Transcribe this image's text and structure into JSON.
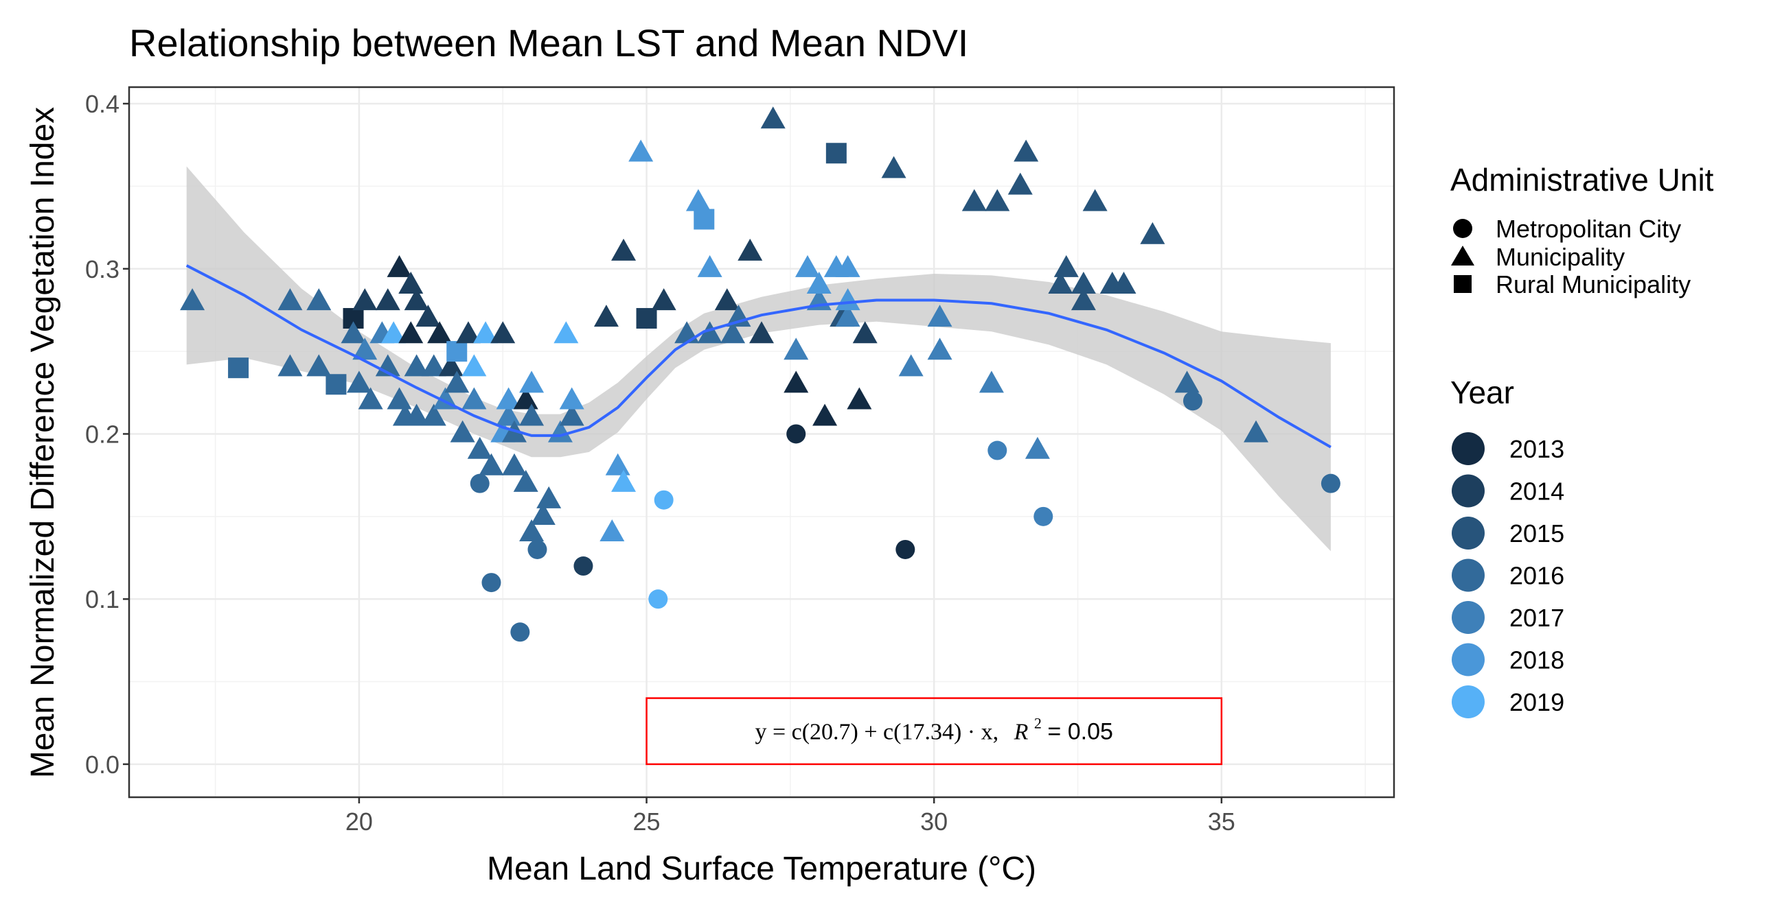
{
  "chart_data": {
    "type": "scatter",
    "title": "Relationship between Mean LST and Mean NDVI",
    "xlabel": "Mean Land Surface Temperature (°C)",
    "ylabel": "Mean Normalized Difference Vegetation Index",
    "xlim": [
      16,
      38
    ],
    "ylim": [
      -0.02,
      0.41
    ],
    "x_ticks": [
      20,
      25,
      30,
      35
    ],
    "y_ticks": [
      0.0,
      0.1,
      0.2,
      0.3,
      0.4
    ],
    "x_tick_labels": [
      "20",
      "25",
      "30",
      "35"
    ],
    "y_tick_labels": [
      "0.0",
      "0.1",
      "0.2",
      "0.3",
      "0.4"
    ],
    "grid": true,
    "annotation": {
      "equation_prefix": "y = c(20.7) + c(17.34) · x,",
      "r2_label": "R",
      "r2_exp": "2",
      "r2_value": " = 0.05",
      "box_x_range": [
        25,
        35
      ],
      "box_y_range": [
        0.0,
        0.04
      ],
      "box_color": "#ff0000"
    },
    "legend": {
      "shape_title": "Administrative Unit",
      "shapes": [
        {
          "label": "Metropolitan City",
          "shape": "circle"
        },
        {
          "label": "Municipality",
          "shape": "triangle"
        },
        {
          "label": "Rural Municipality",
          "shape": "square"
        }
      ],
      "color_title": "Year",
      "years": [
        {
          "label": "2013",
          "color": "#132b43"
        },
        {
          "label": "2014",
          "color": "#1d3f5e"
        },
        {
          "label": "2015",
          "color": "#27547b"
        },
        {
          "label": "2016",
          "color": "#326a9a"
        },
        {
          "label": "2017",
          "color": "#3e80b9"
        },
        {
          "label": "2018",
          "color": "#4a97d9"
        },
        {
          "label": "2019",
          "color": "#56b1f7"
        }
      ]
    },
    "smooth": {
      "color": "#3366ff",
      "ribbon_color": "#cccccc",
      "x": [
        17.0,
        18,
        19,
        20,
        21,
        22,
        22.5,
        23,
        23.5,
        24,
        24.5,
        25,
        25.5,
        26,
        27,
        28,
        29,
        30,
        31,
        32,
        33,
        34,
        35,
        36,
        36.9
      ],
      "y": [
        0.302,
        0.284,
        0.263,
        0.246,
        0.228,
        0.211,
        0.204,
        0.199,
        0.199,
        0.204,
        0.216,
        0.234,
        0.251,
        0.262,
        0.272,
        0.278,
        0.281,
        0.281,
        0.279,
        0.273,
        0.263,
        0.249,
        0.232,
        0.21,
        0.192
      ],
      "upper": [
        0.362,
        0.322,
        0.288,
        0.262,
        0.24,
        0.222,
        0.215,
        0.212,
        0.212,
        0.219,
        0.231,
        0.247,
        0.262,
        0.273,
        0.283,
        0.29,
        0.294,
        0.297,
        0.296,
        0.292,
        0.284,
        0.274,
        0.262,
        0.258,
        0.255
      ],
      "lower": [
        0.242,
        0.246,
        0.238,
        0.23,
        0.216,
        0.2,
        0.193,
        0.186,
        0.186,
        0.189,
        0.201,
        0.221,
        0.24,
        0.251,
        0.261,
        0.266,
        0.268,
        0.265,
        0.262,
        0.254,
        0.242,
        0.224,
        0.202,
        0.162,
        0.129
      ]
    },
    "points": [
      {
        "x": 17.1,
        "y": 0.28,
        "shape": "triangle",
        "year": 2016
      },
      {
        "x": 17.9,
        "y": 0.24,
        "shape": "square",
        "year": 2016
      },
      {
        "x": 18.8,
        "y": 0.28,
        "shape": "triangle",
        "year": 2016
      },
      {
        "x": 18.8,
        "y": 0.24,
        "shape": "triangle",
        "year": 2016
      },
      {
        "x": 19.3,
        "y": 0.28,
        "shape": "triangle",
        "year": 2016
      },
      {
        "x": 19.3,
        "y": 0.24,
        "shape": "triangle",
        "year": 2016
      },
      {
        "x": 19.6,
        "y": 0.23,
        "shape": "square",
        "year": 2016
      },
      {
        "x": 19.9,
        "y": 0.27,
        "shape": "square",
        "year": 2013
      },
      {
        "x": 19.9,
        "y": 0.26,
        "shape": "triangle",
        "year": 2016
      },
      {
        "x": 20.0,
        "y": 0.23,
        "shape": "triangle",
        "year": 2016
      },
      {
        "x": 20.1,
        "y": 0.25,
        "shape": "triangle",
        "year": 2017
      },
      {
        "x": 20.1,
        "y": 0.28,
        "shape": "triangle",
        "year": 2014
      },
      {
        "x": 20.2,
        "y": 0.22,
        "shape": "triangle",
        "year": 2016
      },
      {
        "x": 20.4,
        "y": 0.26,
        "shape": "triangle",
        "year": 2017
      },
      {
        "x": 20.5,
        "y": 0.28,
        "shape": "triangle",
        "year": 2014
      },
      {
        "x": 20.5,
        "y": 0.24,
        "shape": "triangle",
        "year": 2016
      },
      {
        "x": 20.6,
        "y": 0.26,
        "shape": "triangle",
        "year": 2019
      },
      {
        "x": 20.7,
        "y": 0.3,
        "shape": "triangle",
        "year": 2013
      },
      {
        "x": 20.7,
        "y": 0.22,
        "shape": "triangle",
        "year": 2016
      },
      {
        "x": 20.8,
        "y": 0.21,
        "shape": "triangle",
        "year": 2016
      },
      {
        "x": 20.9,
        "y": 0.29,
        "shape": "triangle",
        "year": 2014
      },
      {
        "x": 20.9,
        "y": 0.26,
        "shape": "triangle",
        "year": 2013
      },
      {
        "x": 21.0,
        "y": 0.28,
        "shape": "triangle",
        "year": 2014
      },
      {
        "x": 21.0,
        "y": 0.24,
        "shape": "triangle",
        "year": 2016
      },
      {
        "x": 21.0,
        "y": 0.21,
        "shape": "triangle",
        "year": 2016
      },
      {
        "x": 21.2,
        "y": 0.27,
        "shape": "triangle",
        "year": 2014
      },
      {
        "x": 21.3,
        "y": 0.24,
        "shape": "triangle",
        "year": 2016
      },
      {
        "x": 21.3,
        "y": 0.21,
        "shape": "triangle",
        "year": 2016
      },
      {
        "x": 21.4,
        "y": 0.26,
        "shape": "triangle",
        "year": 2013
      },
      {
        "x": 21.5,
        "y": 0.22,
        "shape": "triangle",
        "year": 2017
      },
      {
        "x": 21.6,
        "y": 0.24,
        "shape": "triangle",
        "year": 2014
      },
      {
        "x": 21.7,
        "y": 0.23,
        "shape": "triangle",
        "year": 2016
      },
      {
        "x": 21.7,
        "y": 0.25,
        "shape": "square",
        "year": 2018
      },
      {
        "x": 21.8,
        "y": 0.2,
        "shape": "triangle",
        "year": 2016
      },
      {
        "x": 21.9,
        "y": 0.26,
        "shape": "triangle",
        "year": 2014
      },
      {
        "x": 22.0,
        "y": 0.24,
        "shape": "triangle",
        "year": 2019
      },
      {
        "x": 22.0,
        "y": 0.22,
        "shape": "triangle",
        "year": 2017
      },
      {
        "x": 22.1,
        "y": 0.19,
        "shape": "triangle",
        "year": 2016
      },
      {
        "x": 22.1,
        "y": 0.17,
        "shape": "circle",
        "year": 2016
      },
      {
        "x": 22.2,
        "y": 0.26,
        "shape": "triangle",
        "year": 2019
      },
      {
        "x": 22.3,
        "y": 0.18,
        "shape": "triangle",
        "year": 2016
      },
      {
        "x": 22.3,
        "y": 0.11,
        "shape": "circle",
        "year": 2016
      },
      {
        "x": 22.5,
        "y": 0.26,
        "shape": "triangle",
        "year": 2014
      },
      {
        "x": 22.5,
        "y": 0.2,
        "shape": "triangle",
        "year": 2018
      },
      {
        "x": 22.6,
        "y": 0.21,
        "shape": "triangle",
        "year": 2017
      },
      {
        "x": 22.6,
        "y": 0.22,
        "shape": "triangle",
        "year": 2018
      },
      {
        "x": 22.7,
        "y": 0.2,
        "shape": "triangle",
        "year": 2016
      },
      {
        "x": 22.7,
        "y": 0.18,
        "shape": "triangle",
        "year": 2016
      },
      {
        "x": 22.8,
        "y": 0.08,
        "shape": "circle",
        "year": 2016
      },
      {
        "x": 22.9,
        "y": 0.22,
        "shape": "triangle",
        "year": 2013
      },
      {
        "x": 22.9,
        "y": 0.17,
        "shape": "triangle",
        "year": 2016
      },
      {
        "x": 23.0,
        "y": 0.23,
        "shape": "triangle",
        "year": 2018
      },
      {
        "x": 23.0,
        "y": 0.21,
        "shape": "triangle",
        "year": 2016
      },
      {
        "x": 23.0,
        "y": 0.14,
        "shape": "triangle",
        "year": 2016
      },
      {
        "x": 23.1,
        "y": 0.13,
        "shape": "circle",
        "year": 2016
      },
      {
        "x": 23.2,
        "y": 0.15,
        "shape": "triangle",
        "year": 2016
      },
      {
        "x": 23.3,
        "y": 0.16,
        "shape": "triangle",
        "year": 2016
      },
      {
        "x": 23.5,
        "y": 0.2,
        "shape": "triangle",
        "year": 2017
      },
      {
        "x": 23.6,
        "y": 0.26,
        "shape": "triangle",
        "year": 2019
      },
      {
        "x": 23.7,
        "y": 0.21,
        "shape": "triangle",
        "year": 2016
      },
      {
        "x": 23.7,
        "y": 0.22,
        "shape": "triangle",
        "year": 2018
      },
      {
        "x": 23.9,
        "y": 0.12,
        "shape": "circle",
        "year": 2014
      },
      {
        "x": 24.3,
        "y": 0.27,
        "shape": "triangle",
        "year": 2014
      },
      {
        "x": 24.4,
        "y": 0.14,
        "shape": "triangle",
        "year": 2018
      },
      {
        "x": 24.5,
        "y": 0.18,
        "shape": "triangle",
        "year": 2018
      },
      {
        "x": 24.6,
        "y": 0.17,
        "shape": "triangle",
        "year": 2019
      },
      {
        "x": 24.6,
        "y": 0.31,
        "shape": "triangle",
        "year": 2014
      },
      {
        "x": 24.9,
        "y": 0.37,
        "shape": "triangle",
        "year": 2018
      },
      {
        "x": 25.0,
        "y": 0.27,
        "shape": "square",
        "year": 2014
      },
      {
        "x": 25.2,
        "y": 0.1,
        "shape": "circle",
        "year": 2019
      },
      {
        "x": 25.3,
        "y": 0.16,
        "shape": "circle",
        "year": 2019
      },
      {
        "x": 25.3,
        "y": 0.28,
        "shape": "triangle",
        "year": 2014
      },
      {
        "x": 25.7,
        "y": 0.26,
        "shape": "triangle",
        "year": 2016
      },
      {
        "x": 25.9,
        "y": 0.34,
        "shape": "triangle",
        "year": 2018
      },
      {
        "x": 26.0,
        "y": 0.33,
        "shape": "square",
        "year": 2018
      },
      {
        "x": 26.1,
        "y": 0.26,
        "shape": "triangle",
        "year": 2016
      },
      {
        "x": 26.1,
        "y": 0.3,
        "shape": "triangle",
        "year": 2018
      },
      {
        "x": 26.4,
        "y": 0.28,
        "shape": "triangle",
        "year": 2014
      },
      {
        "x": 26.5,
        "y": 0.26,
        "shape": "triangle",
        "year": 2016
      },
      {
        "x": 26.6,
        "y": 0.27,
        "shape": "triangle",
        "year": 2016
      },
      {
        "x": 26.8,
        "y": 0.31,
        "shape": "triangle",
        "year": 2014
      },
      {
        "x": 27.0,
        "y": 0.26,
        "shape": "triangle",
        "year": 2014
      },
      {
        "x": 27.2,
        "y": 0.39,
        "shape": "triangle",
        "year": 2015
      },
      {
        "x": 27.6,
        "y": 0.23,
        "shape": "triangle",
        "year": 2013
      },
      {
        "x": 27.6,
        "y": 0.25,
        "shape": "triangle",
        "year": 2017
      },
      {
        "x": 27.6,
        "y": 0.2,
        "shape": "circle",
        "year": 2013
      },
      {
        "x": 27.8,
        "y": 0.3,
        "shape": "triangle",
        "year": 2018
      },
      {
        "x": 28.0,
        "y": 0.28,
        "shape": "triangle",
        "year": 2017
      },
      {
        "x": 28.0,
        "y": 0.29,
        "shape": "triangle",
        "year": 2018
      },
      {
        "x": 28.1,
        "y": 0.21,
        "shape": "triangle",
        "year": 2013
      },
      {
        "x": 28.3,
        "y": 0.37,
        "shape": "square",
        "year": 2015
      },
      {
        "x": 28.3,
        "y": 0.3,
        "shape": "triangle",
        "year": 2018
      },
      {
        "x": 28.4,
        "y": 0.27,
        "shape": "triangle",
        "year": 2015
      },
      {
        "x": 28.5,
        "y": 0.27,
        "shape": "triangle",
        "year": 2017
      },
      {
        "x": 28.5,
        "y": 0.28,
        "shape": "triangle",
        "year": 2018
      },
      {
        "x": 28.5,
        "y": 0.3,
        "shape": "triangle",
        "year": 2018
      },
      {
        "x": 28.7,
        "y": 0.22,
        "shape": "triangle",
        "year": 2013
      },
      {
        "x": 28.8,
        "y": 0.26,
        "shape": "triangle",
        "year": 2014
      },
      {
        "x": 29.3,
        "y": 0.36,
        "shape": "triangle",
        "year": 2015
      },
      {
        "x": 29.5,
        "y": 0.13,
        "shape": "circle",
        "year": 2013
      },
      {
        "x": 29.6,
        "y": 0.24,
        "shape": "triangle",
        "year": 2017
      },
      {
        "x": 30.1,
        "y": 0.25,
        "shape": "triangle",
        "year": 2017
      },
      {
        "x": 30.1,
        "y": 0.27,
        "shape": "triangle",
        "year": 2017
      },
      {
        "x": 30.7,
        "y": 0.34,
        "shape": "triangle",
        "year": 2015
      },
      {
        "x": 31.0,
        "y": 0.23,
        "shape": "triangle",
        "year": 2017
      },
      {
        "x": 31.1,
        "y": 0.19,
        "shape": "circle",
        "year": 2017
      },
      {
        "x": 31.1,
        "y": 0.34,
        "shape": "triangle",
        "year": 2015
      },
      {
        "x": 31.5,
        "y": 0.35,
        "shape": "triangle",
        "year": 2015
      },
      {
        "x": 31.6,
        "y": 0.37,
        "shape": "triangle",
        "year": 2015
      },
      {
        "x": 31.8,
        "y": 0.19,
        "shape": "triangle",
        "year": 2017
      },
      {
        "x": 31.9,
        "y": 0.15,
        "shape": "circle",
        "year": 2017
      },
      {
        "x": 32.2,
        "y": 0.29,
        "shape": "triangle",
        "year": 2015
      },
      {
        "x": 32.3,
        "y": 0.3,
        "shape": "triangle",
        "year": 2015
      },
      {
        "x": 32.6,
        "y": 0.29,
        "shape": "triangle",
        "year": 2015
      },
      {
        "x": 32.6,
        "y": 0.28,
        "shape": "triangle",
        "year": 2015
      },
      {
        "x": 32.8,
        "y": 0.34,
        "shape": "triangle",
        "year": 2015
      },
      {
        "x": 33.1,
        "y": 0.29,
        "shape": "triangle",
        "year": 2015
      },
      {
        "x": 33.3,
        "y": 0.29,
        "shape": "triangle",
        "year": 2015
      },
      {
        "x": 33.8,
        "y": 0.32,
        "shape": "triangle",
        "year": 2015
      },
      {
        "x": 34.4,
        "y": 0.23,
        "shape": "triangle",
        "year": 2016
      },
      {
        "x": 34.5,
        "y": 0.22,
        "shape": "circle",
        "year": 2016
      },
      {
        "x": 35.6,
        "y": 0.2,
        "shape": "triangle",
        "year": 2016
      },
      {
        "x": 36.9,
        "y": 0.17,
        "shape": "circle",
        "year": 2016
      }
    ]
  }
}
